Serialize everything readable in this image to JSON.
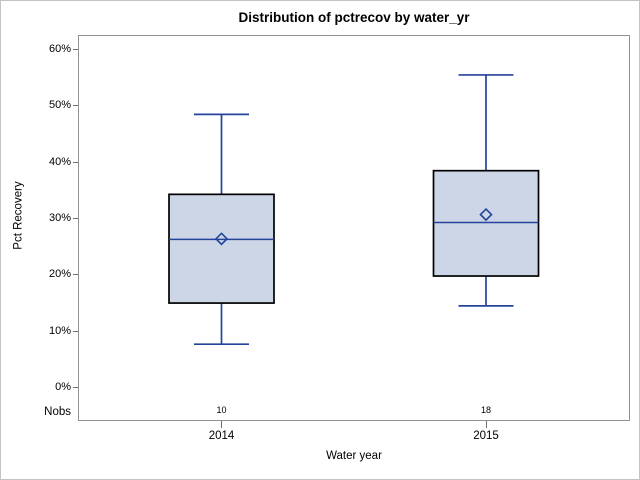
{
  "window": {
    "background": "#ffffff",
    "border_color": "#c3c3c3"
  },
  "chart_data": {
    "type": "boxplot",
    "title": "Distribution of pctrecov by water_yr",
    "xlabel": "Water year",
    "ylabel": "Pct Recovery",
    "nobs_label": "Nobs",
    "categories": [
      "2014",
      "2015"
    ],
    "nobs": [
      "10",
      "18"
    ],
    "yticks": [
      {
        "value": 0,
        "label": "0%"
      },
      {
        "value": 10,
        "label": "10%"
      },
      {
        "value": 20,
        "label": "20%"
      },
      {
        "value": 30,
        "label": "30%"
      },
      {
        "value": 40,
        "label": "40%"
      },
      {
        "value": 50,
        "label": "50%"
      },
      {
        "value": 60,
        "label": "60%"
      }
    ],
    "ylim": [
      -6,
      62.5
    ],
    "grid": false,
    "legend": "none",
    "series": [
      {
        "category": "2014",
        "n": 10,
        "whisker_low": 7.6,
        "q1": 14.9,
        "median": 26.2,
        "mean": 26.3,
        "q3": 34.2,
        "whisker_high": 48.4
      },
      {
        "category": "2015",
        "n": 18,
        "whisker_low": 14.4,
        "q1": 19.7,
        "median": 29.2,
        "mean": 30.6,
        "q3": 38.4,
        "whisker_high": 55.4
      }
    ],
    "colors": {
      "box_fill": "#ccd6e6",
      "box_stroke": "#000000",
      "line": "#24439b",
      "frame": "#8f9194",
      "tick": "#707070",
      "text": "#000000"
    }
  }
}
